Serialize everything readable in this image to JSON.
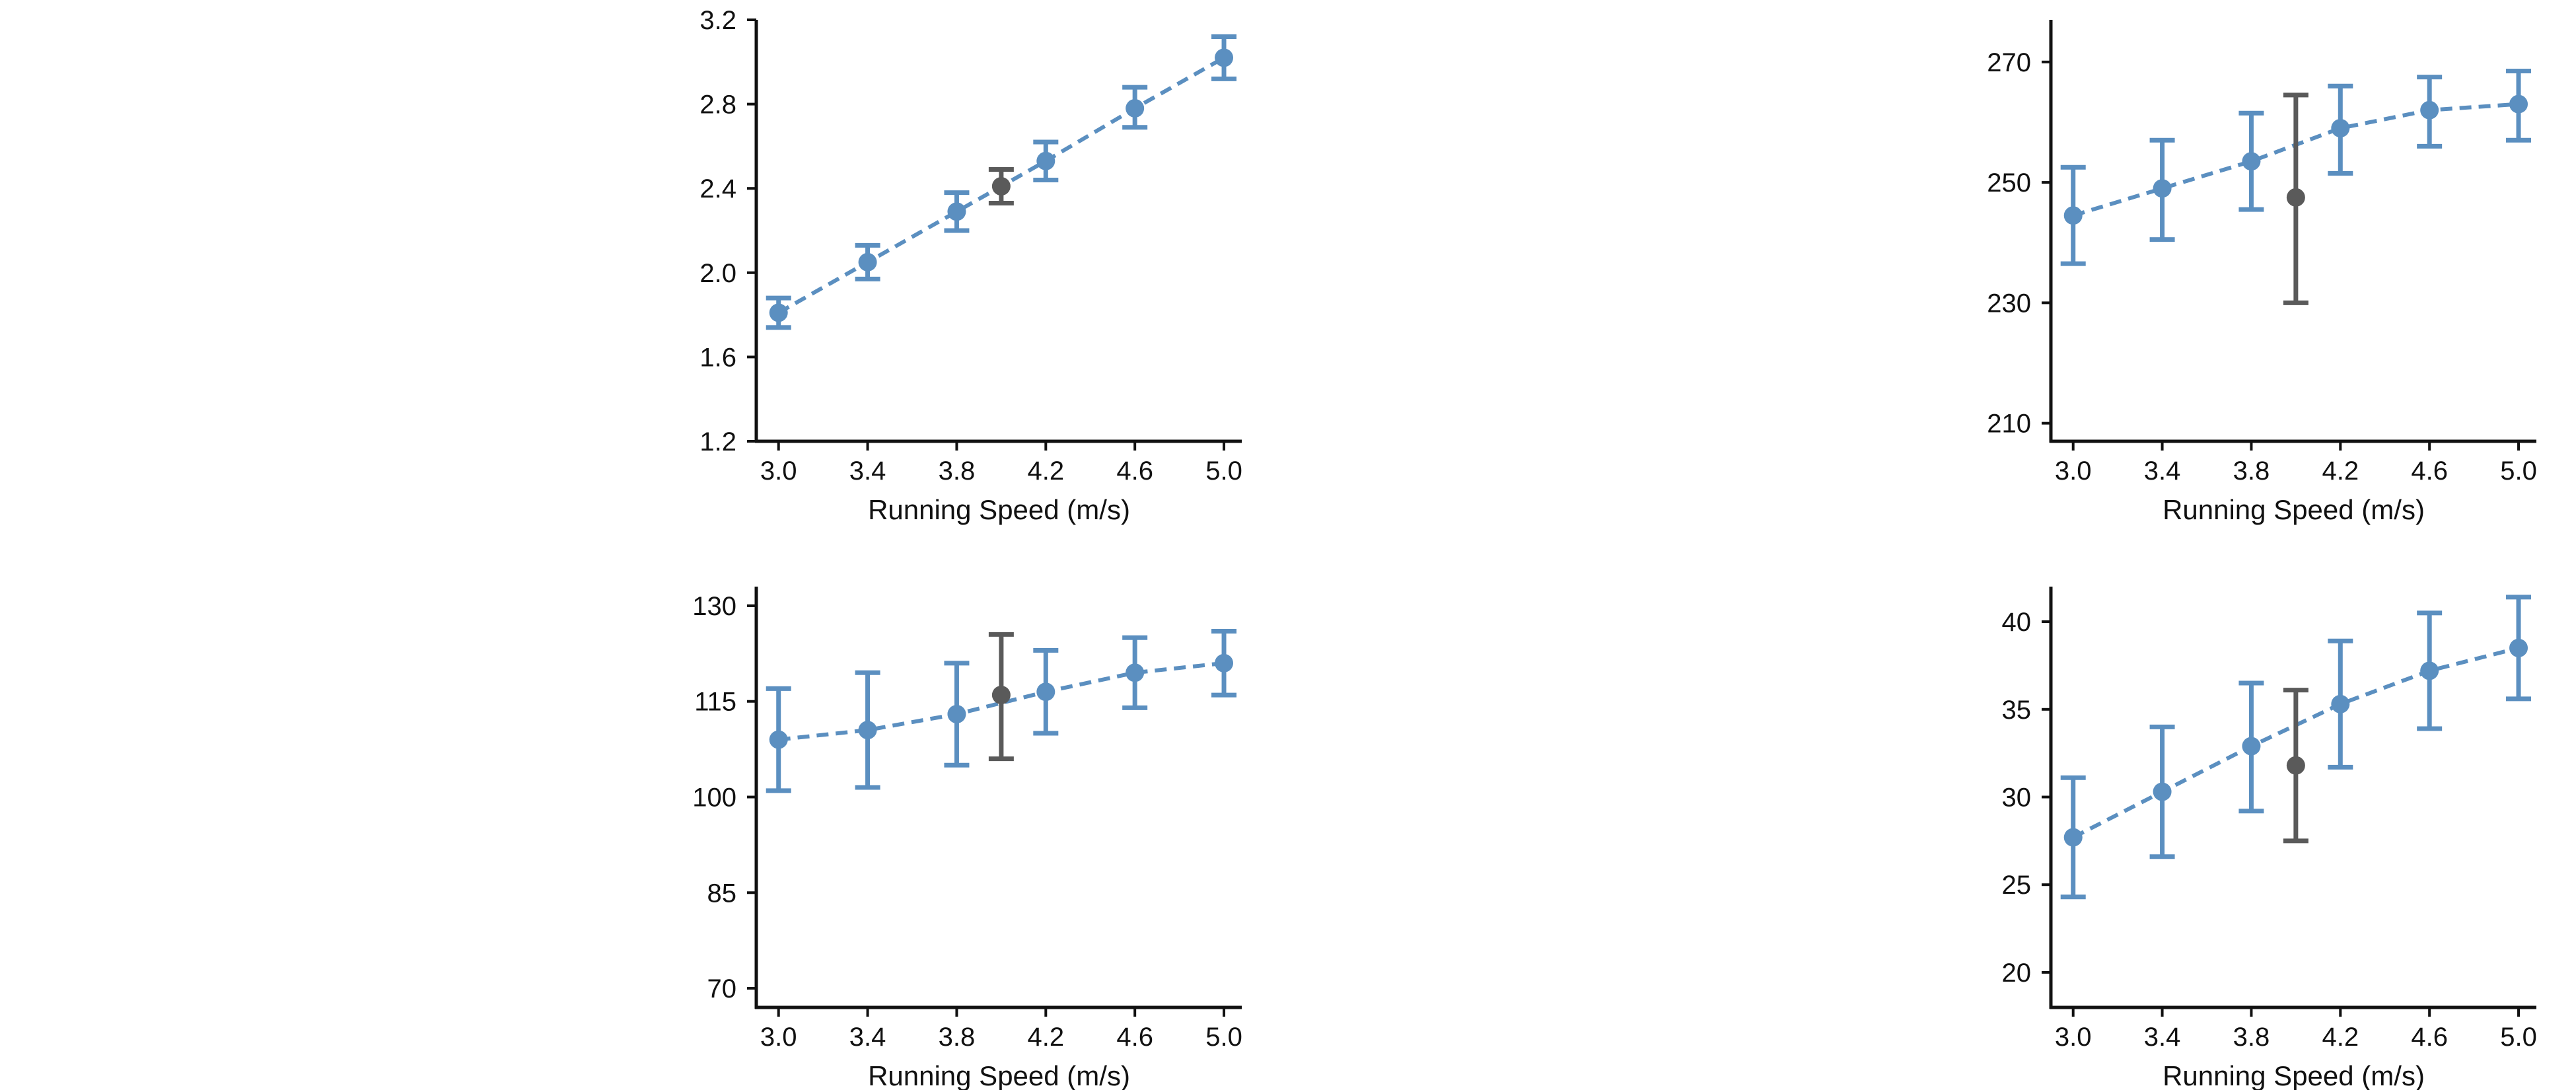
{
  "colors": {
    "series": "#5b8fc0",
    "highlight": "#5a5a5a",
    "axis": "#111111"
  },
  "chart_data": [
    {
      "type": "line",
      "xlabel": "Running Speed (m/s)",
      "ylabel": "",
      "xlim": [
        2.9,
        5.08
      ],
      "ylim": [
        1.2,
        3.2
      ],
      "xticks": [
        "3.0",
        "3.4",
        "3.8",
        "4.2",
        "4.6",
        "5.0"
      ],
      "yticks": [
        "1.2",
        "1.6",
        "2.0",
        "2.4",
        "2.8",
        "3.2"
      ],
      "series": [
        {
          "x": [
            3.0,
            3.4,
            3.8,
            4.2,
            4.6,
            5.0
          ],
          "y": [
            1.81,
            2.05,
            2.29,
            2.53,
            2.78,
            3.02
          ],
          "err_low": [
            1.74,
            1.97,
            2.2,
            2.44,
            2.69,
            2.92
          ],
          "err_high": [
            1.88,
            2.13,
            2.38,
            2.62,
            2.88,
            3.12
          ]
        }
      ],
      "highlight": {
        "x": 4.0,
        "y": 2.41,
        "err_low": 2.33,
        "err_high": 2.49
      }
    },
    {
      "type": "line",
      "xlabel": "Running Speed (m/s)",
      "ylabel": "",
      "xlim": [
        2.9,
        5.08
      ],
      "ylim": [
        207,
        277
      ],
      "xticks": [
        "3.0",
        "3.4",
        "3.8",
        "4.2",
        "4.6",
        "5.0"
      ],
      "yticks": [
        "210",
        "230",
        "250",
        "270"
      ],
      "series": [
        {
          "x": [
            3.0,
            3.4,
            3.8,
            4.2,
            4.6,
            5.0
          ],
          "y": [
            244.5,
            249,
            253.5,
            259,
            262,
            263
          ],
          "err_low": [
            236.5,
            240.5,
            245.5,
            251.5,
            256,
            257
          ],
          "err_high": [
            252.5,
            257,
            261.5,
            266,
            267.5,
            268.5
          ]
        }
      ],
      "highlight": {
        "x": 4.0,
        "y": 247.5,
        "err_low": 230,
        "err_high": 264.5
      }
    },
    {
      "type": "line",
      "xlabel": "Running Speed (m/s)",
      "ylabel": "",
      "xlim": [
        2.9,
        5.08
      ],
      "ylim": [
        67,
        133
      ],
      "xticks": [
        "3.0",
        "3.4",
        "3.8",
        "4.2",
        "4.6",
        "5.0"
      ],
      "yticks": [
        "70",
        "85",
        "100",
        "115",
        "130"
      ],
      "series": [
        {
          "x": [
            3.0,
            3.4,
            3.8,
            4.2,
            4.6,
            5.0
          ],
          "y": [
            109,
            110.5,
            113,
            116.5,
            119.5,
            121
          ],
          "err_low": [
            101,
            101.5,
            105,
            110,
            114,
            116
          ],
          "err_high": [
            117,
            119.5,
            121,
            123,
            125,
            126
          ]
        }
      ],
      "highlight": {
        "x": 4.0,
        "y": 116,
        "err_low": 106,
        "err_high": 125.5
      }
    },
    {
      "type": "line",
      "xlabel": "Running Speed (m/s)",
      "ylabel": "",
      "xlim": [
        2.9,
        5.08
      ],
      "ylim": [
        18,
        42
      ],
      "xticks": [
        "3.0",
        "3.4",
        "3.8",
        "4.2",
        "4.6",
        "5.0"
      ],
      "yticks": [
        "20",
        "25",
        "30",
        "35",
        "40"
      ],
      "series": [
        {
          "x": [
            3.0,
            3.4,
            3.8,
            4.2,
            4.6,
            5.0
          ],
          "y": [
            27.7,
            30.3,
            32.9,
            35.3,
            37.2,
            38.5
          ],
          "err_low": [
            24.3,
            26.6,
            29.2,
            31.7,
            33.9,
            35.6
          ],
          "err_high": [
            31.1,
            34,
            36.5,
            38.9,
            40.5,
            41.4
          ]
        }
      ],
      "highlight": {
        "x": 4.0,
        "y": 31.8,
        "err_low": 27.5,
        "err_high": 36.1
      }
    }
  ]
}
